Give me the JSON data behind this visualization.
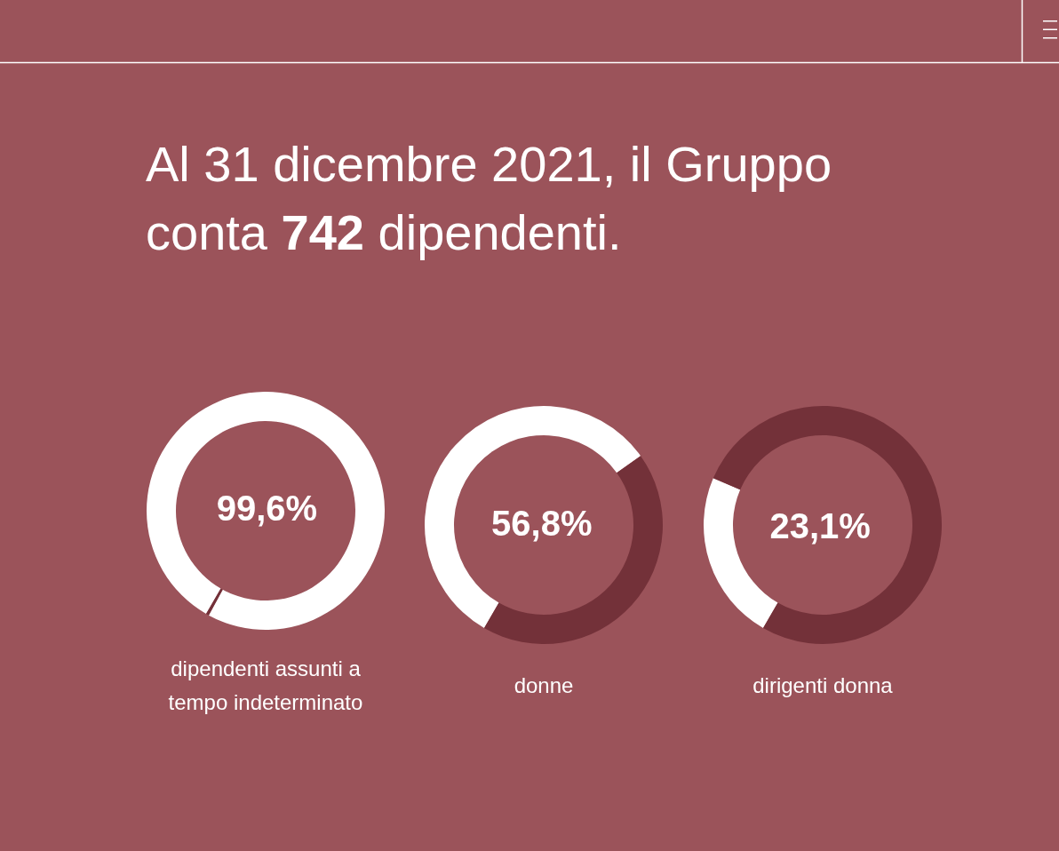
{
  "chart_data": [
    {
      "type": "other",
      "title": "Al 31 dicembre 2021, il Gruppo conta 742 dipendenti."
    },
    {
      "type": "donut",
      "categories": [
        null,
        null
      ],
      "values": [
        99.6,
        0.4
      ],
      "colors": [
        "#ffffff",
        "#733139"
      ],
      "value_labels": [
        "99,6%",
        null
      ],
      "xlabel": "dipendenti assunti a tempo indeterminato"
    },
    {
      "type": "donut",
      "categories": [
        null,
        null
      ],
      "values": [
        56.8,
        43.2
      ],
      "colors": [
        "#ffffff",
        "#733139"
      ],
      "value_labels": [
        "56,8%",
        null
      ],
      "xlabel": "donne"
    },
    {
      "type": "donut",
      "categories": [
        null,
        null
      ],
      "values": [
        23.1,
        76.9
      ],
      "colors": [
        "#ffffff",
        "#733139"
      ],
      "value_labels": [
        "23,1%",
        null
      ],
      "xlabel": "dirigenti donna"
    }
  ]
}
